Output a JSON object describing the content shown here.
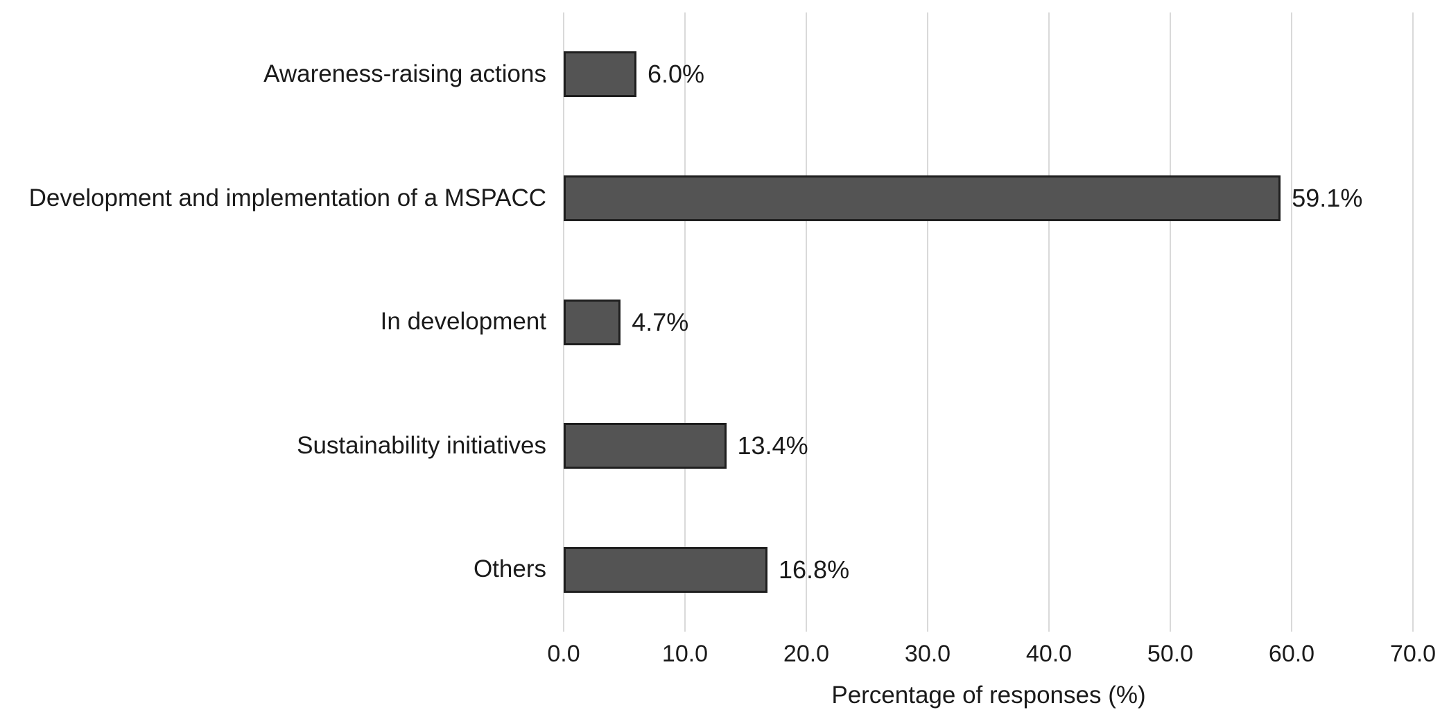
{
  "chart_data": {
    "type": "bar",
    "orientation": "horizontal",
    "title": "",
    "categories": [
      "Awareness-raising actions",
      "Development and implementation of a MSPACC",
      "In development",
      "Sustainability initiatives",
      "Others"
    ],
    "values": [
      6.0,
      59.1,
      4.7,
      13.4,
      16.8
    ],
    "value_labels": [
      "6.0%",
      "59.1%",
      "4.7%",
      "13.4%",
      "16.8%"
    ],
    "xlabel": "Percentage of responses (%)",
    "ylabel": "",
    "xlim": [
      0,
      70
    ],
    "xticks": [
      0,
      10,
      20,
      30,
      40,
      50,
      60,
      70
    ],
    "xtick_labels": [
      "0.0",
      "10.0",
      "20.0",
      "30.0",
      "40.0",
      "50.0",
      "60.0",
      "70.0"
    ],
    "grid": "vertical-only",
    "legend": "none",
    "colors": {
      "bar_fill": "#545454",
      "bar_border": "#1f1f1f",
      "gridline": "#d9d9d9",
      "text": "#1a1a1a",
      "background": "#ffffff"
    }
  }
}
